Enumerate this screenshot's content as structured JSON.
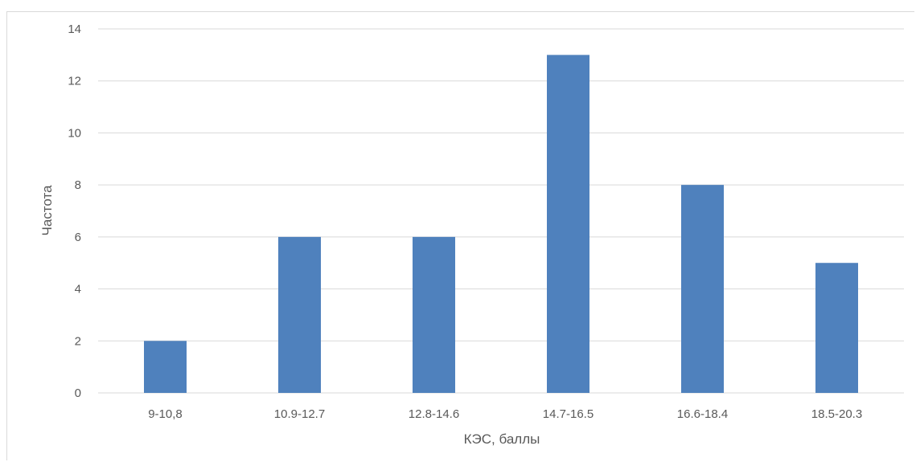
{
  "chart_data": {
    "type": "bar",
    "categories": [
      "9-10,8",
      "10.9-12.7",
      "12.8-14.6",
      "14.7-16.5",
      "16.6-18.4",
      "18.5-20.3"
    ],
    "values": [
      2,
      6,
      6,
      13,
      8,
      5
    ],
    "xlabel": "КЭС, баллы",
    "ylabel": "Частота",
    "ylim": [
      0,
      14
    ],
    "yticks": [
      0,
      2,
      4,
      6,
      8,
      10,
      12,
      14
    ],
    "grid": true,
    "legend": "none",
    "bar_color": "#4f81bd",
    "grid_color": "#d9d9d9"
  }
}
